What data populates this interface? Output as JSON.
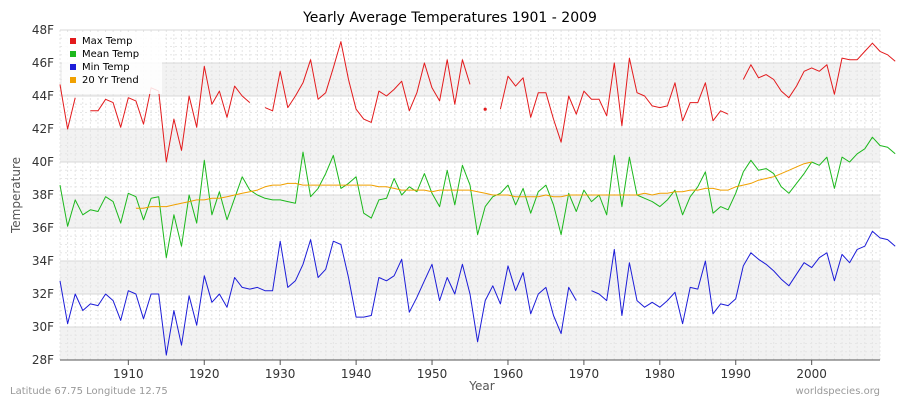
{
  "chart_data": {
    "type": "line",
    "title": "Yearly Average Temperatures 1901 - 2009",
    "xlabel": "Year",
    "ylabel": "Temperature",
    "xlim": [
      1901,
      2009
    ],
    "ylim": [
      28,
      48
    ],
    "x_ticks": [
      1910,
      1920,
      1930,
      1940,
      1950,
      1960,
      1970,
      1980,
      1990,
      2000
    ],
    "y_ticks": [
      28,
      30,
      32,
      34,
      36,
      38,
      40,
      42,
      44,
      46,
      48
    ],
    "y_tick_labels": [
      "28F",
      "30F",
      "32F",
      "34F",
      "36F",
      "38F",
      "40F",
      "42F",
      "44F",
      "46F",
      "48F"
    ],
    "grid": true,
    "legend_position": "top-left",
    "footer_left": "Latitude 67.75 Longitude 12.75",
    "footer_right": "worldspecies.org",
    "series": [
      {
        "name": "Max Temp",
        "color": "#e31a1c",
        "values": [
          44.7,
          42.0,
          43.9,
          null,
          43.1,
          43.1,
          43.8,
          43.6,
          42.1,
          43.9,
          43.7,
          42.3,
          44.5,
          44.3,
          40.0,
          42.6,
          40.7,
          44.0,
          42.1,
          45.8,
          43.5,
          44.3,
          42.7,
          44.6,
          44.0,
          43.6,
          null,
          43.3,
          43.1,
          45.5,
          43.3,
          44.0,
          44.8,
          46.2,
          43.8,
          44.2,
          45.7,
          47.3,
          45.0,
          43.2,
          42.6,
          42.4,
          44.3,
          44.0,
          44.4,
          44.9,
          43.1,
          44.2,
          46.0,
          44.5,
          43.7,
          46.2,
          43.5,
          46.2,
          44.7,
          null,
          43.2,
          null,
          43.2,
          45.2,
          44.6,
          45.1,
          42.7,
          44.2,
          44.2,
          42.6,
          41.2,
          44.0,
          42.9,
          44.3,
          43.8,
          43.8,
          42.8,
          46.0,
          42.2,
          46.3,
          44.2,
          44.0,
          43.4,
          43.3,
          43.4,
          44.8,
          42.5,
          43.6,
          43.6,
          44.8,
          42.5,
          43.1,
          42.9,
          null,
          45.0,
          45.9,
          45.1,
          45.3,
          45.0,
          44.3,
          43.9,
          44.6,
          45.5,
          45.7,
          45.5,
          45.9,
          44.1,
          46.3,
          46.2,
          46.2,
          46.7,
          47.2,
          46.7,
          46.5,
          46.1
        ]
      },
      {
        "name": "Mean Temp",
        "color": "#1cb81c",
        "values": [
          38.6,
          36.1,
          37.7,
          36.8,
          37.1,
          37.0,
          37.9,
          37.6,
          36.3,
          38.1,
          37.9,
          36.5,
          37.8,
          37.9,
          34.2,
          36.8,
          34.9,
          38.0,
          36.3,
          40.1,
          36.8,
          38.2,
          36.5,
          37.8,
          39.1,
          38.3,
          38.0,
          37.8,
          37.7,
          37.7,
          37.6,
          37.5,
          40.6,
          37.9,
          38.4,
          39.3,
          40.4,
          38.4,
          38.7,
          39.1,
          36.9,
          36.6,
          37.7,
          37.8,
          39.0,
          38.0,
          38.5,
          38.2,
          39.3,
          38.1,
          37.3,
          39.5,
          37.4,
          39.8,
          38.6,
          35.6,
          37.3,
          37.9,
          38.1,
          38.6,
          37.4,
          38.4,
          36.9,
          38.2,
          38.6,
          37.4,
          35.6,
          38.1,
          37.0,
          38.3,
          37.6,
          38.0,
          36.8,
          40.4,
          37.3,
          40.3,
          38.0,
          37.8,
          37.6,
          37.3,
          37.7,
          38.3,
          36.8,
          37.9,
          38.5,
          39.4,
          36.9,
          37.3,
          37.1,
          38.1,
          39.4,
          40.1,
          39.5,
          39.6,
          39.3,
          38.5,
          38.1,
          38.7,
          39.3,
          40.0,
          39.8,
          40.3,
          38.4,
          40.3,
          40.0,
          40.5,
          40.8,
          41.5,
          41.0,
          40.9,
          40.5
        ]
      },
      {
        "name": "Min Temp",
        "color": "#1c1cd8",
        "values": [
          32.8,
          30.2,
          32.0,
          31.0,
          31.4,
          31.3,
          32.0,
          31.6,
          30.4,
          32.2,
          32.0,
          30.5,
          32.0,
          32.0,
          28.3,
          31.0,
          28.9,
          31.9,
          30.1,
          33.1,
          31.5,
          32.0,
          31.2,
          33.0,
          32.4,
          32.3,
          32.4,
          32.2,
          32.2,
          35.2,
          32.4,
          32.8,
          33.8,
          35.3,
          33.0,
          33.5,
          35.2,
          35.0,
          33.0,
          30.6,
          30.6,
          30.7,
          33.0,
          32.8,
          33.1,
          34.1,
          30.9,
          31.8,
          32.8,
          33.8,
          31.6,
          33.0,
          32.0,
          33.8,
          32.0,
          29.1,
          31.6,
          32.5,
          31.4,
          33.7,
          32.2,
          33.3,
          30.8,
          32.0,
          32.4,
          30.7,
          29.6,
          32.4,
          31.6,
          null,
          32.2,
          32.0,
          31.6,
          34.7,
          30.7,
          33.9,
          31.6,
          31.2,
          31.5,
          31.2,
          31.6,
          32.1,
          30.2,
          32.4,
          32.3,
          34.0,
          30.8,
          31.4,
          31.3,
          31.7,
          33.7,
          34.5,
          34.1,
          33.8,
          33.4,
          32.9,
          32.5,
          33.2,
          33.9,
          33.6,
          34.2,
          34.5,
          32.8,
          34.4,
          33.9,
          34.7,
          34.9,
          35.8,
          35.4,
          35.3,
          34.9
        ]
      },
      {
        "name": "20 Yr Trend",
        "color": "#f0a000",
        "values": [
          null,
          null,
          null,
          null,
          null,
          null,
          null,
          null,
          null,
          null,
          37.2,
          37.2,
          37.3,
          37.3,
          37.3,
          37.4,
          37.5,
          37.6,
          37.7,
          37.7,
          37.8,
          37.8,
          37.9,
          38.0,
          38.1,
          38.2,
          38.3,
          38.5,
          38.6,
          38.6,
          38.7,
          38.7,
          38.6,
          38.6,
          38.6,
          38.6,
          38.6,
          38.6,
          38.6,
          38.6,
          38.6,
          38.6,
          38.5,
          38.5,
          38.4,
          38.3,
          38.3,
          38.3,
          38.3,
          38.2,
          38.3,
          38.3,
          38.3,
          38.3,
          38.3,
          38.2,
          38.1,
          38.0,
          38.0,
          38.0,
          37.9,
          37.9,
          37.9,
          37.9,
          38.0,
          37.9,
          37.9,
          38.0,
          38.0,
          38.0,
          38.0,
          38.0,
          38.0,
          38.0,
          38.0,
          38.0,
          38.0,
          38.1,
          38.0,
          38.1,
          38.1,
          38.2,
          38.2,
          38.3,
          38.3,
          38.4,
          38.4,
          38.3,
          38.3,
          38.5,
          38.6,
          38.7,
          38.9,
          39.0,
          39.1,
          39.3,
          39.5,
          39.7,
          39.9,
          40.0,
          null,
          null,
          null,
          null,
          null,
          null,
          null,
          null,
          null,
          null,
          null
        ]
      }
    ]
  }
}
